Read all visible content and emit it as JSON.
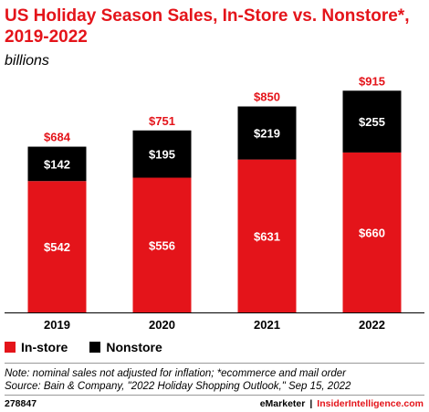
{
  "chart_data": {
    "type": "bar",
    "stacked": true,
    "title": "US Holiday Season Sales, In-Store vs. Nonstore*, 2019-2022",
    "subtitle": "billions",
    "categories": [
      "2019",
      "2020",
      "2021",
      "2022"
    ],
    "series": [
      {
        "name": "In-store",
        "color": "#e4141a",
        "values": [
          542,
          556,
          631,
          660
        ],
        "labels": [
          "$542",
          "$556",
          "$631",
          "$660"
        ]
      },
      {
        "name": "Nonstore",
        "color": "#000000",
        "values": [
          142,
          195,
          219,
          255
        ],
        "labels": [
          "$142",
          "$195",
          "$219",
          "$255"
        ]
      }
    ],
    "totals": [
      684,
      751,
      850,
      915
    ],
    "total_labels": [
      "$684",
      "$751",
      "$850",
      "$915"
    ],
    "ylim": [
      0,
      950
    ],
    "grid": false,
    "legend_position": "bottom-left"
  },
  "note": "Note: nominal sales not adjusted for inflation; *ecommerce and mail order",
  "source": "Source: Bain & Company, \"2022 Holiday Shopping Outlook,\" Sep 15, 2022",
  "chart_id": "278847",
  "brand": "eMarketer",
  "brand_separator": "|",
  "brand_link": "InsiderIntelligence.com"
}
